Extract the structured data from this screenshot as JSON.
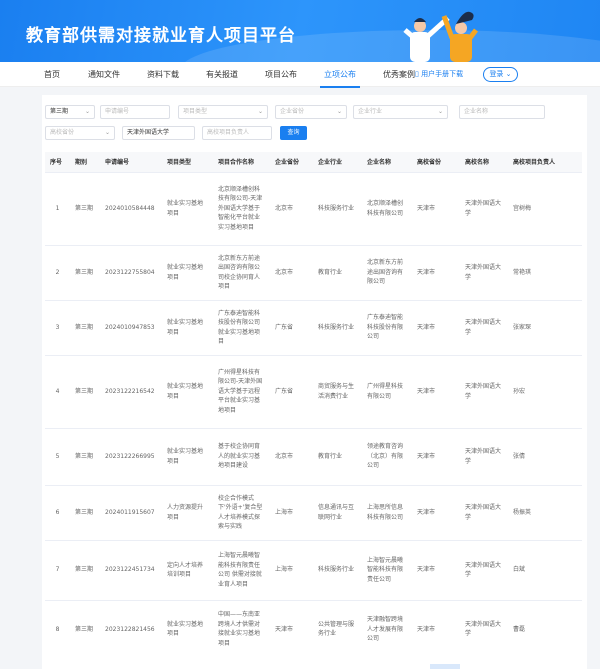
{
  "header": {
    "title": "教育部供需对接就业育人项目平台"
  },
  "nav": {
    "items": [
      "首页",
      "通知文件",
      "资料下载",
      "有关报道",
      "项目公布",
      "立项公布",
      "优秀案例"
    ],
    "active": "立项公布",
    "manual": "用户手册下载",
    "login": "登录"
  },
  "filters": {
    "period": "第三期",
    "app_no_placeholder": "申请编号",
    "type_placeholder": "项目类型",
    "ent_province_placeholder": "企业省份",
    "industry_placeholder": "企业行业",
    "ent_name_placeholder": "企业名称",
    "school_province_placeholder": "高校省份",
    "school_name": "天津外国语大学",
    "leader_placeholder": "高校项目负责人",
    "search": "查询"
  },
  "table": {
    "headers": [
      "序号",
      "期别",
      "申请编号",
      "项目类型",
      "项目合作名称",
      "企业省份",
      "企业行业",
      "企业名称",
      "高校省份",
      "高校名称",
      "高校项目负责人"
    ],
    "rows": [
      [
        "1",
        "第三期",
        "2024010584448",
        "就业实习基地项目",
        "北京顺泽槽创科技有限公司-天津外国语大学基于智能化平台就业实习基地项目",
        "北京市",
        "科技服务行业",
        "北京顺泽槽创科技有限公司",
        "天津市",
        "天津外国语大学",
        "宫树梅"
      ],
      [
        "2",
        "第三期",
        "2023122755804",
        "就业实习基地项目",
        "北京新东方前途出国咨询有限公司校企协同育人项目",
        "北京市",
        "教育行业",
        "北京新东方前途出国咨询有限公司",
        "天津市",
        "天津外国语大学",
        "常艳琪"
      ],
      [
        "3",
        "第三期",
        "2024010947853",
        "就业实习基地项目",
        "广东泰迪智能科技股份有限公司就业实习基地项目",
        "广东省",
        "科技服务行业",
        "广东泰迪智能科技股份有限公司",
        "天津市",
        "天津外国语大学",
        "张家琛"
      ],
      [
        "4",
        "第三期",
        "2023122216542",
        "就业实习基地项目",
        "广州得星科技有限公司-天津外国语大学基于远程平台就业实习基地项目",
        "广东省",
        "商贸服务与生活消费行业",
        "广州得星科技有限公司",
        "天津市",
        "天津外国语大学",
        "孙宏"
      ],
      [
        "5",
        "第三期",
        "2023122266995",
        "就业实习基地项目",
        "基于校企协同育人的就业实习基地项目建设",
        "北京市",
        "教育行业",
        "领途教育咨询（北京）有限公司",
        "天津市",
        "天津外国语大学",
        "张倩"
      ],
      [
        "6",
        "第三期",
        "2024011915607",
        "人力资源提升项目",
        "校企合作模式下'外语+'复合型人才培养模式探索与实践",
        "上海市",
        "信息通讯与互联网行业",
        "上海思所信息科技有限公司",
        "天津市",
        "天津外国语大学",
        "杨振英"
      ],
      [
        "7",
        "第三期",
        "2023122451734",
        "定向人才培养培训项目",
        "上海智元晨曦智能科技有限责任公司 供需对接就业育人项目",
        "上海市",
        "科技服务行业",
        "上海智元晨曦智能科技有限责任公司",
        "天津市",
        "天津外国语大学",
        "白斌"
      ],
      [
        "8",
        "第三期",
        "2023122821456",
        "就业实习基地项目",
        "中国——东南亚跨境人才供需对接就业实习基地项目",
        "天津市",
        "公共管理与服务行业",
        "天津融智跨境人才发展有限公司",
        "天津市",
        "天津外国语大学",
        "曹磊"
      ]
    ]
  },
  "colors": {
    "brand": "#1a7ff0"
  }
}
